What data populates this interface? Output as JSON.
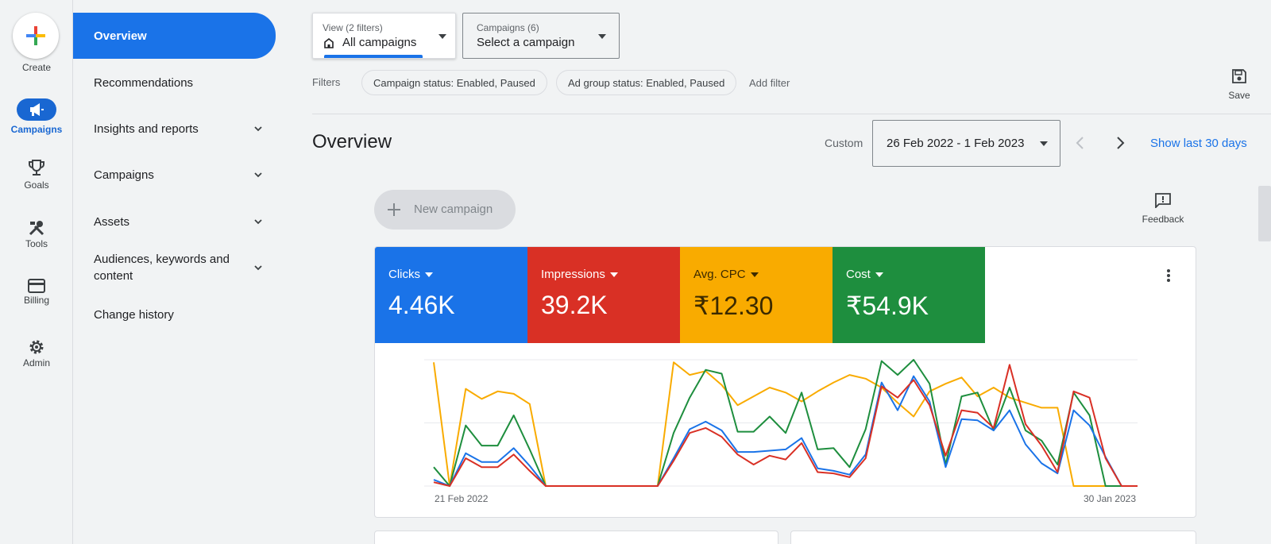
{
  "rail": {
    "create_label": "Create",
    "items": [
      {
        "label": "Campaigns",
        "icon": "megaphone-icon"
      },
      {
        "label": "Goals",
        "icon": "trophy-icon"
      },
      {
        "label": "Tools",
        "icon": "tools-icon"
      },
      {
        "label": "Billing",
        "icon": "credit-card-icon"
      },
      {
        "label": "Admin",
        "icon": "gear-icon"
      }
    ]
  },
  "nav": {
    "items": [
      {
        "label": "Overview"
      },
      {
        "label": "Recommendations"
      },
      {
        "label": "Insights and reports"
      },
      {
        "label": "Campaigns"
      },
      {
        "label": "Assets"
      },
      {
        "label": "Audiences, keywords and content"
      },
      {
        "label": "Change history"
      }
    ]
  },
  "filters_bar": {
    "view_small": "View (2 filters)",
    "view_main": "All campaigns",
    "campaigns_small": "Campaigns (6)",
    "campaigns_main": "Select a campaign",
    "filters_label": "Filters",
    "chips": [
      "Campaign status: Enabled, Paused",
      "Ad group status: Enabled, Paused"
    ],
    "add_filter": "Add filter",
    "save_label": "Save"
  },
  "header": {
    "title": "Overview",
    "range_type": "Custom",
    "date_range": "26 Feb 2022 - 1 Feb 2023",
    "show_last": "Show last 30 days"
  },
  "actions": {
    "new_campaign": "New campaign",
    "feedback": "Feedback"
  },
  "colors": {
    "clicks": "#1a73e8",
    "impressions": "#d93025",
    "cpc": "#f9ab00",
    "cost": "#1e8e3e"
  },
  "metrics": [
    {
      "label": "Clicks",
      "value": "4.46K"
    },
    {
      "label": "Impressions",
      "value": "39.2K"
    },
    {
      "label": "Avg. CPC",
      "value": "₹12.30"
    },
    {
      "label": "Cost",
      "value": "₹54.9K"
    }
  ],
  "chart_data": {
    "type": "line",
    "x_start_label": "21 Feb 2022",
    "x_end_label": "30 Jan 2023",
    "series": [
      {
        "name": "Avg. CPC",
        "color": "#f9ab00",
        "values": [
          98,
          0,
          77,
          69,
          75,
          73,
          65,
          0,
          0,
          0,
          0,
          0,
          0,
          0,
          0,
          98,
          88,
          91,
          80,
          64,
          71,
          78,
          74,
          67,
          75,
          82,
          88,
          85,
          78,
          66,
          55,
          75,
          81,
          86,
          71,
          78,
          70,
          66,
          62,
          62,
          0,
          0,
          0,
          0,
          0
        ]
      },
      {
        "name": "Cost",
        "color": "#1e8e3e",
        "values": [
          15,
          0,
          48,
          32,
          32,
          56,
          29,
          0,
          0,
          0,
          0,
          0,
          0,
          0,
          0,
          42,
          70,
          92,
          89,
          43,
          43,
          55,
          42,
          74,
          29,
          30,
          15,
          45,
          99,
          88,
          100,
          81,
          17,
          71,
          74,
          44,
          78,
          44,
          36,
          17,
          74,
          56,
          0,
          0,
          0
        ]
      },
      {
        "name": "Clicks",
        "color": "#1a73e8",
        "values": [
          5,
          0,
          26,
          19,
          19,
          30,
          16,
          0,
          0,
          0,
          0,
          0,
          0,
          0,
          0,
          22,
          45,
          51,
          44,
          27,
          27,
          28,
          29,
          38,
          14,
          12,
          9,
          25,
          82,
          60,
          87,
          67,
          15,
          53,
          52,
          44,
          60,
          33,
          18,
          10,
          60,
          48,
          23,
          0,
          0
        ]
      },
      {
        "name": "Impressions",
        "color": "#d93025",
        "values": [
          3,
          0,
          22,
          15,
          15,
          25,
          12,
          0,
          0,
          0,
          0,
          0,
          0,
          0,
          0,
          20,
          42,
          46,
          39,
          25,
          17,
          24,
          21,
          34,
          11,
          10,
          7,
          22,
          79,
          70,
          84,
          64,
          24,
          60,
          58,
          46,
          96,
          49,
          32,
          11,
          75,
          70,
          22,
          0,
          0
        ]
      }
    ]
  }
}
